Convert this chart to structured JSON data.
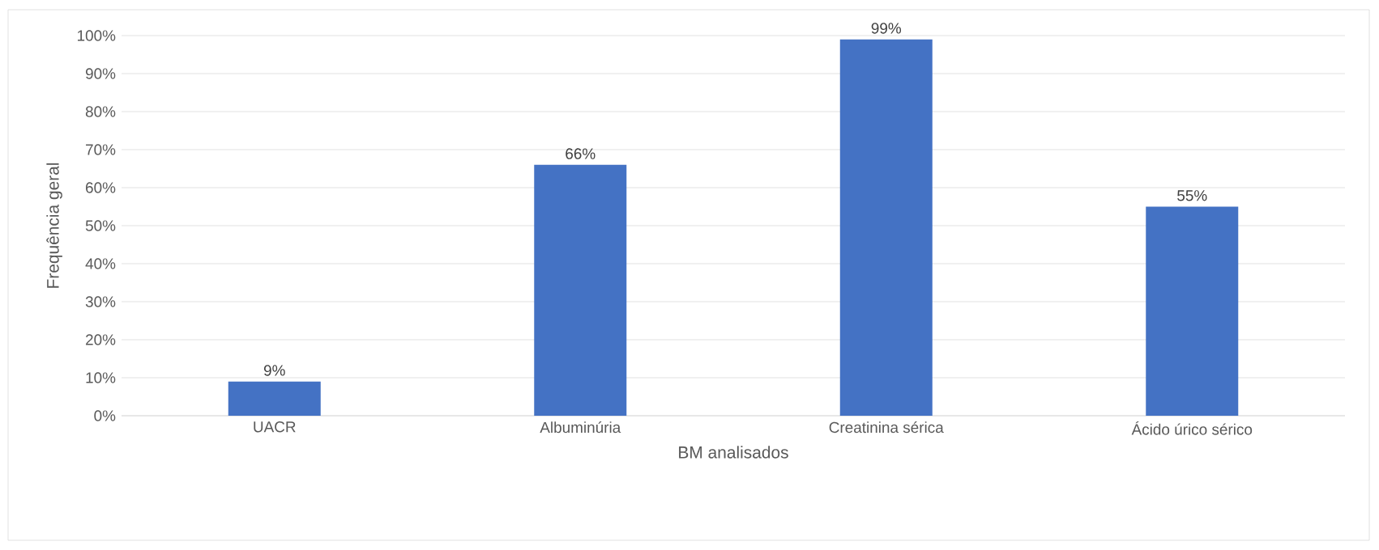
{
  "chart_data": {
    "type": "bar",
    "xlabel": "BM analisados",
    "ylabel": "Frequência  geral",
    "categories": [
      "UACR",
      "Albuminúria",
      "Creatinina sérica",
      "Ácido úrico sérico"
    ],
    "values": [
      9,
      66,
      99,
      55
    ],
    "value_labels": [
      "9%",
      "66%",
      "99%",
      "55%"
    ],
    "color": "#4472c4",
    "ylim": [
      0,
      100
    ],
    "yticks": [
      {
        "value": 0,
        "label": "0%"
      },
      {
        "value": 10,
        "label": "10%"
      },
      {
        "value": 20,
        "label": "20%"
      },
      {
        "value": 30,
        "label": "30%"
      },
      {
        "value": 40,
        "label": "40%"
      },
      {
        "value": 50,
        "label": "50%"
      },
      {
        "value": 60,
        "label": "60%"
      },
      {
        "value": 70,
        "label": "70%"
      },
      {
        "value": 80,
        "label": "80%"
      },
      {
        "value": 90,
        "label": "90%"
      },
      {
        "value": 100,
        "label": "100%"
      }
    ],
    "grid": "y"
  }
}
